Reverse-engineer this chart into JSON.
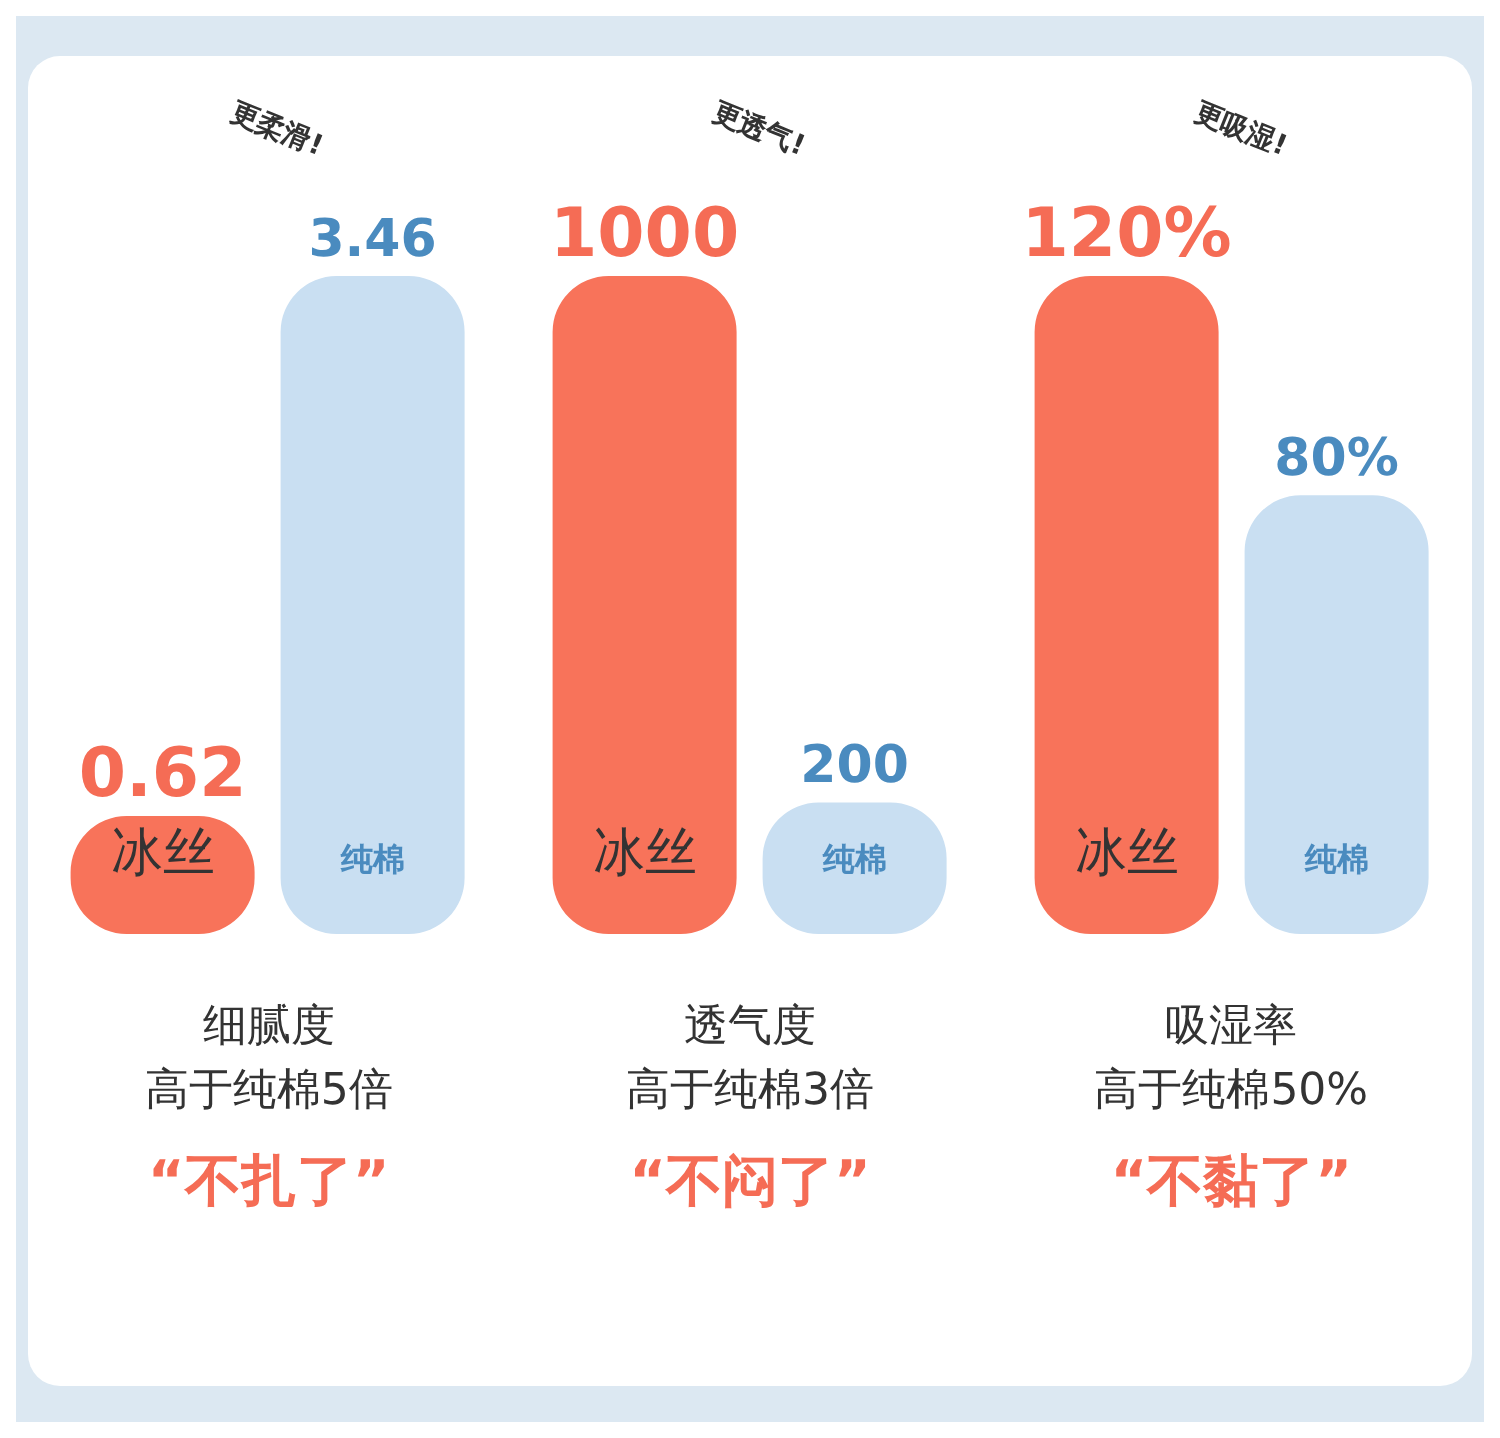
{
  "chart_data": [
    {
      "type": "bar",
      "title": "细腻度",
      "subtitle": "高于纯棉5倍",
      "categories": [
        "冰丝",
        "纯棉"
      ],
      "values": [
        0.62,
        3.46
      ],
      "value_labels": [
        "0.62",
        "3.46"
      ],
      "colors": [
        "#f8735a",
        "#c9dff2"
      ],
      "annotations": [
        "更柔滑!",
        "“不扎了”"
      ]
    },
    {
      "type": "bar",
      "title": "透气度",
      "subtitle": "高于纯棉3倍",
      "categories": [
        "冰丝",
        "纯棉"
      ],
      "values": [
        1000,
        200
      ],
      "value_labels": [
        "1000",
        "200"
      ],
      "colors": [
        "#f8735a",
        "#c9dff2"
      ],
      "annotations": [
        "更透气!",
        "“不闷了”"
      ]
    },
    {
      "type": "bar",
      "title": "吸湿率",
      "subtitle": "高于纯棉50%",
      "categories": [
        "冰丝",
        "纯棉"
      ],
      "values": [
        120,
        80
      ],
      "value_labels": [
        "120%",
        "80%"
      ],
      "colors": [
        "#f8735a",
        "#c9dff2"
      ],
      "annotations": [
        "更吸湿!",
        "“不黏了”"
      ]
    }
  ]
}
